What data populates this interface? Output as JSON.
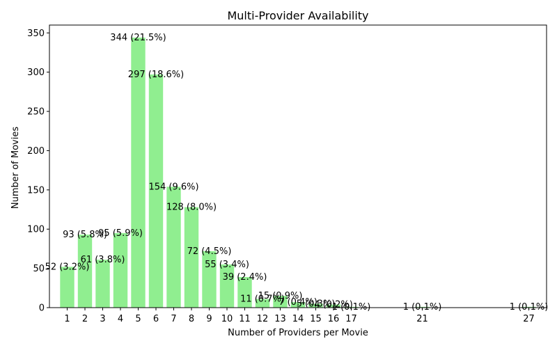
{
  "chart_data": {
    "type": "bar",
    "title": "Multi-Provider Availability",
    "xlabel": "Number of Providers per Movie",
    "ylabel": "Number of Movies",
    "ylim": [
      0,
      360
    ],
    "yticks": [
      0,
      50,
      100,
      150,
      200,
      250,
      300,
      350
    ],
    "xlim": [
      0,
      28
    ],
    "xticks": [
      1,
      2,
      3,
      4,
      5,
      6,
      7,
      8,
      9,
      10,
      11,
      12,
      13,
      14,
      15,
      16,
      17,
      21,
      27
    ],
    "bar_color": "#90ee90",
    "grid": false,
    "bars": [
      {
        "x": 1,
        "value": 52,
        "label": "52 (3.2%)"
      },
      {
        "x": 2,
        "value": 93,
        "label": "93 (5.8%)"
      },
      {
        "x": 3,
        "value": 61,
        "label": "61 (3.8%)"
      },
      {
        "x": 4,
        "value": 95,
        "label": "95 (5.9%)"
      },
      {
        "x": 5,
        "value": 344,
        "label": "344 (21.5%)"
      },
      {
        "x": 6,
        "value": 297,
        "label": "297 (18.6%)"
      },
      {
        "x": 7,
        "value": 154,
        "label": "154 (9.6%)"
      },
      {
        "x": 8,
        "value": 128,
        "label": "128 (8.0%)"
      },
      {
        "x": 9,
        "value": 72,
        "label": "72 (4.5%)"
      },
      {
        "x": 10,
        "value": 55,
        "label": "55 (3.4%)"
      },
      {
        "x": 11,
        "value": 39,
        "label": "39 (2.4%)"
      },
      {
        "x": 12,
        "value": 11,
        "label": "11 (0.7%)"
      },
      {
        "x": 13,
        "value": 15,
        "label": "15 (0.9%)"
      },
      {
        "x": 14,
        "value": 7,
        "label": "7 (0.4%)"
      },
      {
        "x": 15,
        "value": 5,
        "label": "5 (0.3%)"
      },
      {
        "x": 16,
        "value": 4,
        "label": "4 (0.2%)"
      },
      {
        "x": 17,
        "value": 1,
        "label": "1 (0.1%)"
      },
      {
        "x": 21,
        "value": 1,
        "label": "1 (0.1%)"
      },
      {
        "x": 27,
        "value": 1,
        "label": "1 (0.1%)"
      }
    ]
  }
}
